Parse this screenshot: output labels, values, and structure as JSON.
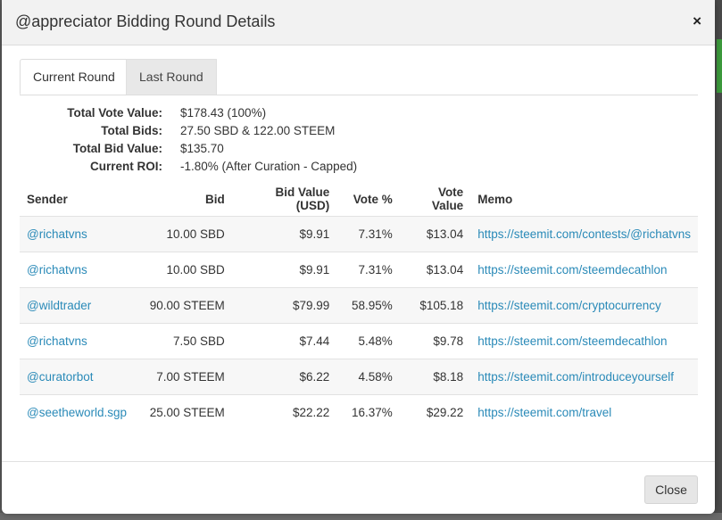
{
  "modal": {
    "title": "@appreciator Bidding Round Details",
    "close_glyph": "×"
  },
  "tabs": [
    {
      "label": "Current Round"
    },
    {
      "label": "Last Round"
    }
  ],
  "summary": [
    {
      "label": "Total Vote Value:",
      "value": "$178.43 (100%)"
    },
    {
      "label": "Total Bids:",
      "value": "27.50 SBD & 122.00 STEEM"
    },
    {
      "label": "Total Bid Value:",
      "value": "$135.70"
    },
    {
      "label": "Current ROI:",
      "value": "-1.80% (After Curation - Capped)"
    }
  ],
  "table": {
    "headers": [
      "Sender",
      "Bid",
      "Bid Value (USD)",
      "Vote %",
      "Vote Value",
      "Memo"
    ],
    "rows": [
      [
        "@richatvns",
        "10.00 SBD",
        "$9.91",
        "7.31%",
        "$13.04",
        "https://steemit.com/contests/@richatvns"
      ],
      [
        "@richatvns",
        "10.00 SBD",
        "$9.91",
        "7.31%",
        "$13.04",
        "https://steemit.com/steemdecathlon"
      ],
      [
        "@wildtrader",
        "90.00 STEEM",
        "$79.99",
        "58.95%",
        "$105.18",
        "https://steemit.com/cryptocurrency"
      ],
      [
        "@richatvns",
        "7.50 SBD",
        "$7.44",
        "5.48%",
        "$9.78",
        "https://steemit.com/steemdecathlon"
      ],
      [
        "@curatorbot",
        "7.00 STEEM",
        "$6.22",
        "4.58%",
        "$8.18",
        "https://steemit.com/introduceyourself"
      ],
      [
        "@seetheworld.sgp",
        "25.00 STEEM",
        "$22.22",
        "16.37%",
        "$29.22",
        "https://steemit.com/travel"
      ]
    ]
  },
  "footer": {
    "close_label": "Close"
  },
  "colors": {
    "link": "#2a8ab8",
    "header_bg": "#f2f2f2"
  }
}
